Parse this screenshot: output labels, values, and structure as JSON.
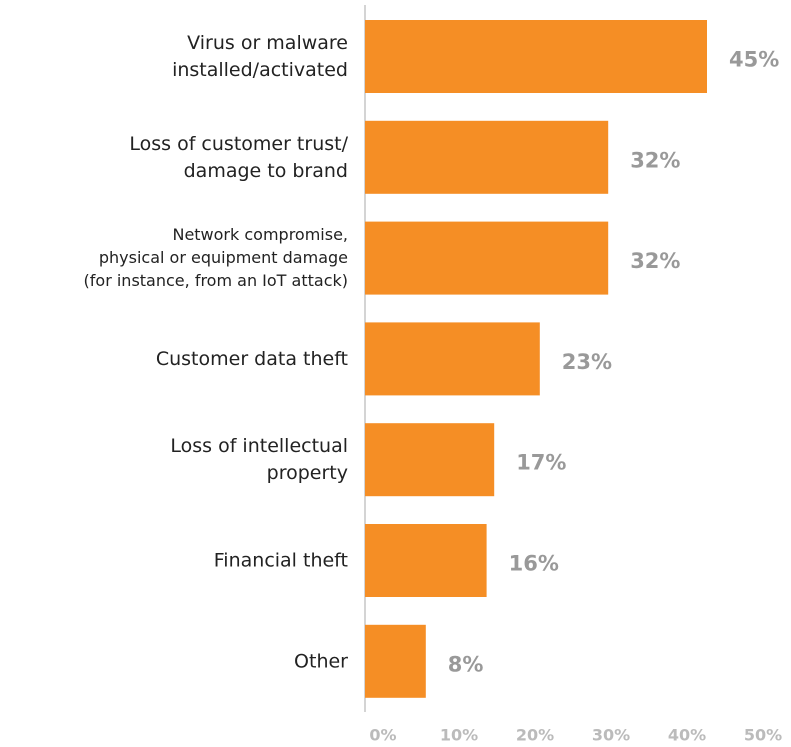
{
  "chart_data": {
    "type": "bar",
    "orientation": "horizontal",
    "categories": [
      [
        "Virus or malware",
        "installed/activated"
      ],
      [
        "Loss of customer trust/",
        "damage to brand"
      ],
      [
        "Network compromise,",
        "physical or equipment damage",
        "(for instance, from an IoT attack)"
      ],
      [
        "Customer data theft"
      ],
      [
        "Loss of intellectual",
        "property"
      ],
      [
        "Financial theft"
      ],
      [
        "Other"
      ]
    ],
    "values": [
      45,
      32,
      32,
      23,
      17,
      16,
      8
    ],
    "value_labels": [
      "45%",
      "32%",
      "32%",
      "23%",
      "17%",
      "16%",
      "8%"
    ],
    "color": "#f58e25",
    "xlim": [
      0,
      50
    ],
    "xticks": [
      {
        "value": 0,
        "label": "0%"
      },
      {
        "value": 10,
        "label": "10%"
      },
      {
        "value": 20,
        "label": "20%"
      },
      {
        "value": 30,
        "label": "30%"
      },
      {
        "value": 40,
        "label": "40%"
      },
      {
        "value": 50,
        "label": "50%"
      }
    ],
    "grid": false
  }
}
